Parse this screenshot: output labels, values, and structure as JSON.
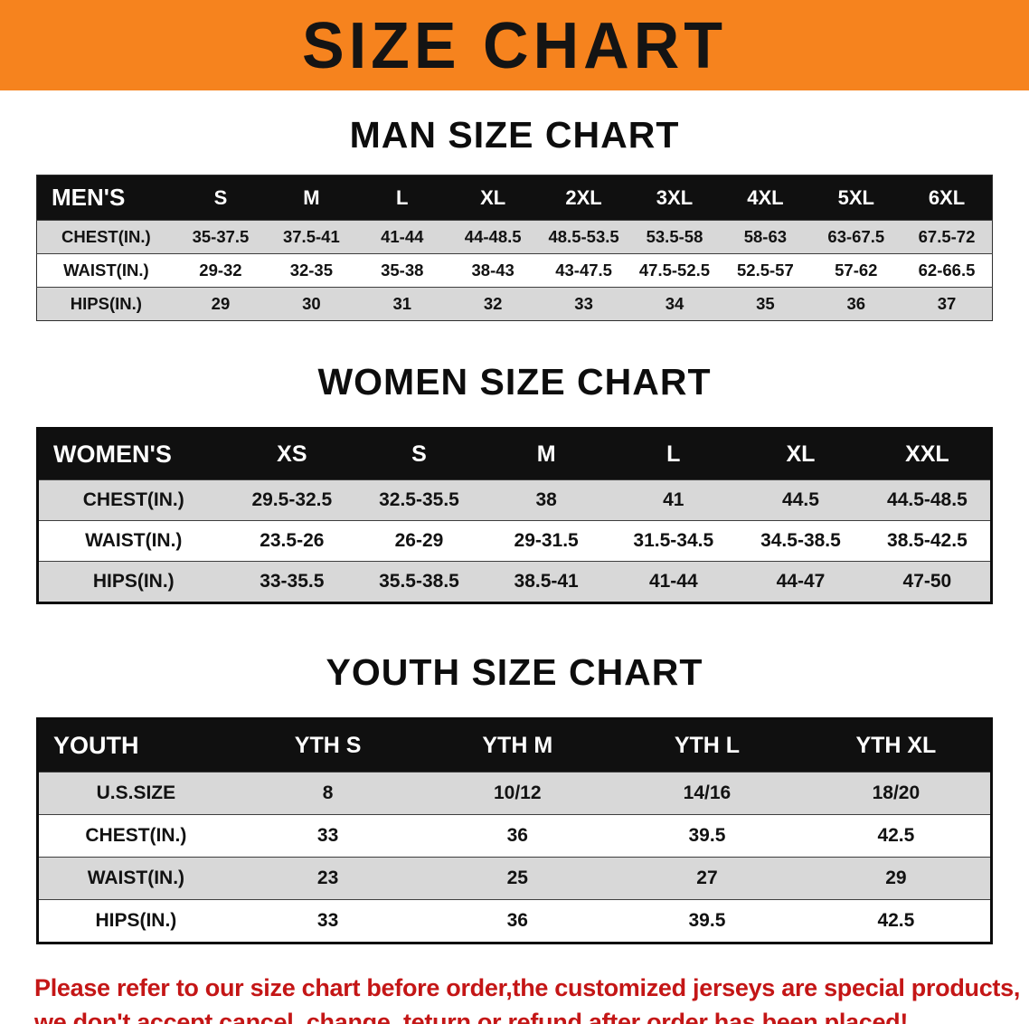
{
  "banner": {
    "title": "SIZE CHART"
  },
  "colors": {
    "banner_bg": "#f6831e",
    "table_header_bg": "#101010",
    "row_alt": "#d8d8d8",
    "notice_text": "#c41616"
  },
  "sections": [
    {
      "heading": "MAN SIZE CHART",
      "table": {
        "corner": "MEN'S",
        "columns": [
          "S",
          "M",
          "L",
          "XL",
          "2XL",
          "3XL",
          "4XL",
          "5XL",
          "6XL"
        ],
        "rows": [
          {
            "label": "CHEST(IN.)",
            "values": [
              "35-37.5",
              "37.5-41",
              "41-44",
              "44-48.5",
              "48.5-53.5",
              "53.5-58",
              "58-63",
              "63-67.5",
              "67.5-72"
            ]
          },
          {
            "label": "WAIST(IN.)",
            "values": [
              "29-32",
              "32-35",
              "35-38",
              "38-43",
              "43-47.5",
              "47.5-52.5",
              "52.5-57",
              "57-62",
              "62-66.5"
            ]
          },
          {
            "label": "HIPS(IN.)",
            "values": [
              "29",
              "30",
              "31",
              "32",
              "33",
              "34",
              "35",
              "36",
              "37"
            ]
          }
        ]
      }
    },
    {
      "heading": "WOMEN SIZE CHART",
      "table": {
        "corner": "WOMEN'S",
        "columns": [
          "XS",
          "S",
          "M",
          "L",
          "XL",
          "XXL"
        ],
        "rows": [
          {
            "label": "CHEST(IN.)",
            "values": [
              "29.5-32.5",
              "32.5-35.5",
              "38",
              "41",
              "44.5",
              "44.5-48.5"
            ]
          },
          {
            "label": "WAIST(IN.)",
            "values": [
              "23.5-26",
              "26-29",
              "29-31.5",
              "31.5-34.5",
              "34.5-38.5",
              "38.5-42.5"
            ]
          },
          {
            "label": "HIPS(IN.)",
            "values": [
              "33-35.5",
              "35.5-38.5",
              "38.5-41",
              "41-44",
              "44-47",
              "47-50"
            ]
          }
        ]
      }
    },
    {
      "heading": "YOUTH SIZE CHART",
      "table": {
        "corner": "YOUTH",
        "columns": [
          "YTH S",
          "YTH M",
          "YTH L",
          "YTH XL"
        ],
        "rows": [
          {
            "label": "U.S.SIZE",
            "values": [
              "8",
              "10/12",
              "14/16",
              "18/20"
            ]
          },
          {
            "label": "CHEST(IN.)",
            "values": [
              "33",
              "36",
              "39.5",
              "42.5"
            ]
          },
          {
            "label": "WAIST(IN.)",
            "values": [
              "23",
              "25",
              "27",
              "29"
            ]
          },
          {
            "label": "HIPS(IN.)",
            "values": [
              "33",
              "36",
              "39.5",
              "42.5"
            ]
          }
        ]
      }
    }
  ],
  "footer": {
    "line1": "Please refer to our size chart before order,the customized jerseys are special products,",
    "line2": "we don't accept cancel, change, teturn or refund after order has been placed!"
  }
}
